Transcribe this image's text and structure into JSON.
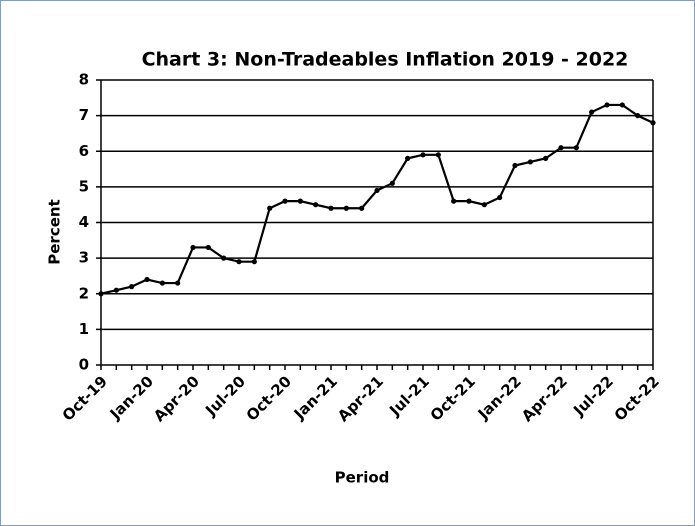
{
  "chart_data": {
    "type": "line",
    "title": "Chart 3: Non-Tradeables Inflation  2019 - 2022",
    "x_label": "Period",
    "y_label": "Percent",
    "categories": [
      "Oct-19",
      null,
      null,
      "Jan-20",
      null,
      null,
      "Apr-20",
      null,
      null,
      "Jul-20",
      null,
      null,
      "Oct-20",
      null,
      null,
      "Jan-21",
      null,
      null,
      "Apr-21",
      null,
      null,
      "Jul-21",
      null,
      null,
      "Oct-21",
      null,
      null,
      "Jan-22",
      null,
      null,
      "Apr-22",
      null,
      null,
      "Jul-22",
      null,
      null,
      "Oct-22"
    ],
    "series": [
      {
        "name": "Non-Tradeables Inflation",
        "color": "#000000",
        "values": [
          2.0,
          2.1,
          2.2,
          2.4,
          2.3,
          2.3,
          3.3,
          3.3,
          3.0,
          2.9,
          2.9,
          4.4,
          4.6,
          4.6,
          4.5,
          4.4,
          4.4,
          4.4,
          4.9,
          5.1,
          5.8,
          5.9,
          5.9,
          4.6,
          4.6,
          4.5,
          4.7,
          5.6,
          5.7,
          5.8,
          6.1,
          6.1,
          7.1,
          7.3,
          7.3,
          7.0,
          6.8
        ]
      }
    ],
    "ylim": [
      0,
      8
    ],
    "yticks": [
      0,
      1,
      2,
      3,
      4,
      5,
      6,
      7,
      8
    ],
    "grid": true
  }
}
